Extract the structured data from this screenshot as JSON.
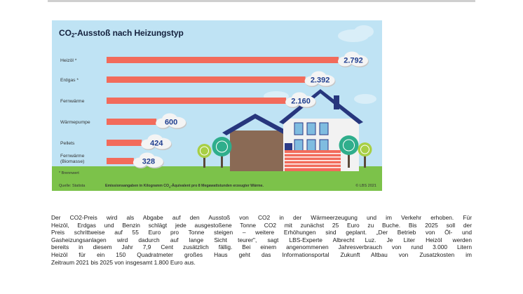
{
  "chart_data": {
    "type": "bar",
    "orientation": "horizontal",
    "title_prefix": "CO",
    "title_sub": "2",
    "title_suffix": "-Ausstoß nach Heizungstyp",
    "categories": [
      "Heizöl *",
      "Erdgas *",
      "Fernwärme",
      "Wärmepumpe",
      "Pellets",
      "Fernwärme (Biomasse)"
    ],
    "category_lines": [
      [
        "Heizöl *"
      ],
      [
        "Erdgas *"
      ],
      [
        "Fernwärme"
      ],
      [
        "Wärmepumpe"
      ],
      [
        "Pellets"
      ],
      [
        "Fernwärme",
        "(Biomasse)"
      ]
    ],
    "values": [
      2792,
      2392,
      2160,
      600,
      424,
      328
    ],
    "value_labels": [
      "2.792",
      "2.392",
      "2.160",
      "600",
      "424",
      "328"
    ],
    "bar_color": "#f26b5b",
    "label_color": "#1f3e8f",
    "background_color": "#bfe3f4",
    "ground_color": "#7cc24a",
    "footnote": "* Brennwert",
    "source": "Quelle: Statista",
    "unit_note_prefix": "Emissionsangaben in Kilogramm CO",
    "unit_note_sub": "2",
    "unit_note_suffix": "-Äquivalent pro 8 Megawattstunden erzeugter Wärme.",
    "copyright": "© LBS 2021"
  },
  "article": {
    "lines": [
      "Der CO2-Preis wird als Abgabe auf den Ausstoß von CO2 in der Wärmeerzeugung und im Verkehr erhoben. Für",
      "Heizöl, Erdgas und Benzin schlägt jede ausgestoßene Tonne CO2 mit zunächst 25 Euro zu Buche. Bis 2025 soll der",
      "Preis schrittweise auf 55 Euro pro Tonne steigen – weitere Erhöhungen sind geplant. „Der Betrieb von Öl- und",
      "Gasheizungsanlagen wird dadurch auf lange Sicht teurer\", sagt LBS-Experte Albrecht Luz. Je Liter Heizöl werden",
      "bereits in diesem Jahr 7,9 Cent zusätzlich fällig. Bei einem angenommenen Jahresverbrauch von rund 3.000 Litern",
      "Heizöl für ein 150 Quadratmeter großes Haus geht das Informationsportal Zukunft Altbau von Zusatzkosten im",
      "Zeitraum 2021 bis 2025 von insgesamt 1.800 Euro aus."
    ]
  }
}
